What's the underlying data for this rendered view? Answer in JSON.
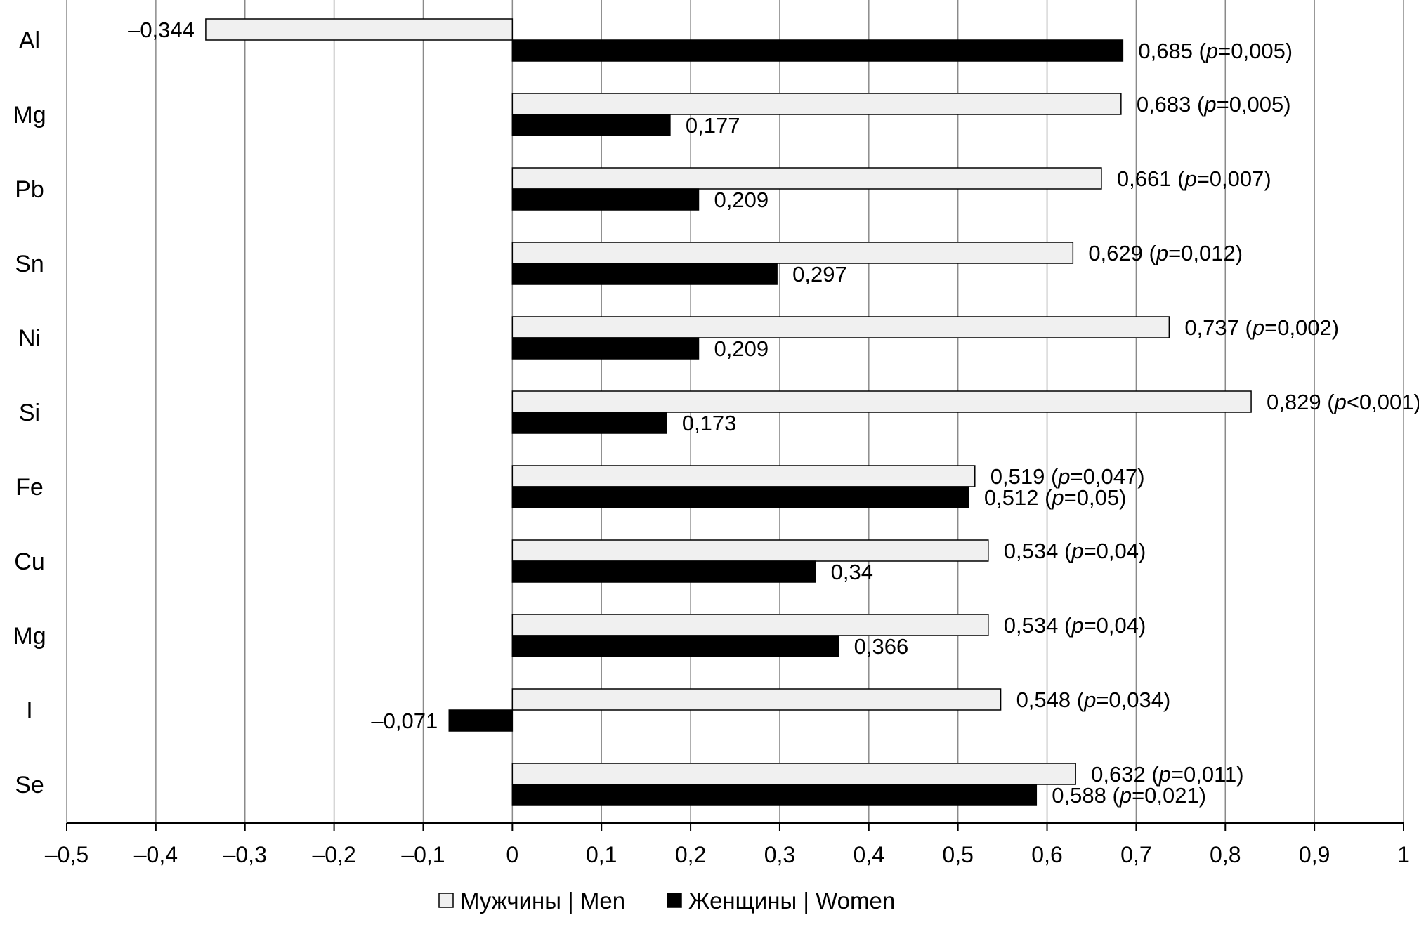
{
  "chart_data": {
    "type": "bar",
    "orientation": "horizontal",
    "title": "",
    "xlabel": "",
    "ylabel": "",
    "categories": [
      "Al",
      "Mg",
      "Pb",
      "Sn",
      "Ni",
      "Si",
      "Fe",
      "Cu",
      "Mg",
      "I",
      "Se"
    ],
    "series": [
      {
        "name": "Мужчины | Men",
        "color": "#f0f0f0",
        "values": [
          -0.344,
          0.683,
          0.661,
          0.629,
          0.737,
          0.829,
          0.519,
          0.534,
          0.534,
          0.548,
          0.632
        ],
        "labels": [
          {
            "value": "–0,344",
            "p": ""
          },
          {
            "value": "0,683",
            "p": "=0,005"
          },
          {
            "value": "0,661",
            "p": "=0,007"
          },
          {
            "value": "0,629",
            "p": "=0,012"
          },
          {
            "value": "0,737",
            "p": "=0,002"
          },
          {
            "value": "0,829",
            "p": "<0,001"
          },
          {
            "value": "0,519",
            "p": "=0,047"
          },
          {
            "value": "0,534",
            "p": "=0,04"
          },
          {
            "value": "0,534",
            "p": "=0,04"
          },
          {
            "value": "0,548",
            "p": "=0,034"
          },
          {
            "value": "0,632",
            "p": "=0,011"
          }
        ]
      },
      {
        "name": "Женщины | Women",
        "color": "#000000",
        "values": [
          0.685,
          0.177,
          0.209,
          0.297,
          0.209,
          0.173,
          0.512,
          0.34,
          0.366,
          -0.071,
          0.588
        ],
        "labels": [
          {
            "value": "0,685",
            "p": "=0,005"
          },
          {
            "value": "0,177",
            "p": ""
          },
          {
            "value": "0,209",
            "p": ""
          },
          {
            "value": "0,297",
            "p": ""
          },
          {
            "value": "0,209",
            "p": ""
          },
          {
            "value": "0,173",
            "p": ""
          },
          {
            "value": "0,512",
            "p": "=0,05"
          },
          {
            "value": "0,34",
            "p": ""
          },
          {
            "value": "0,366",
            "p": ""
          },
          {
            "value": "–0,071",
            "p": ""
          },
          {
            "value": "0,588",
            "p": "=0,021"
          }
        ]
      }
    ],
    "xlim": [
      -0.5,
      1
    ],
    "xticks": [
      -0.5,
      -0.4,
      -0.3,
      -0.2,
      -0.1,
      0,
      0.1,
      0.2,
      0.3,
      0.4,
      0.5,
      0.6,
      0.7,
      0.8,
      0.9,
      1
    ],
    "xtick_labels": [
      "–0,5",
      "–0,4",
      "–0,3",
      "–0,2",
      "–0,1",
      "0",
      "0,1",
      "0,2",
      "0,3",
      "0,4",
      "0,5",
      "0,6",
      "0,7",
      "0,8",
      "0,9",
      "1"
    ],
    "p_letter": "p",
    "grid": "vertical",
    "legend_position": "bottom-center"
  }
}
